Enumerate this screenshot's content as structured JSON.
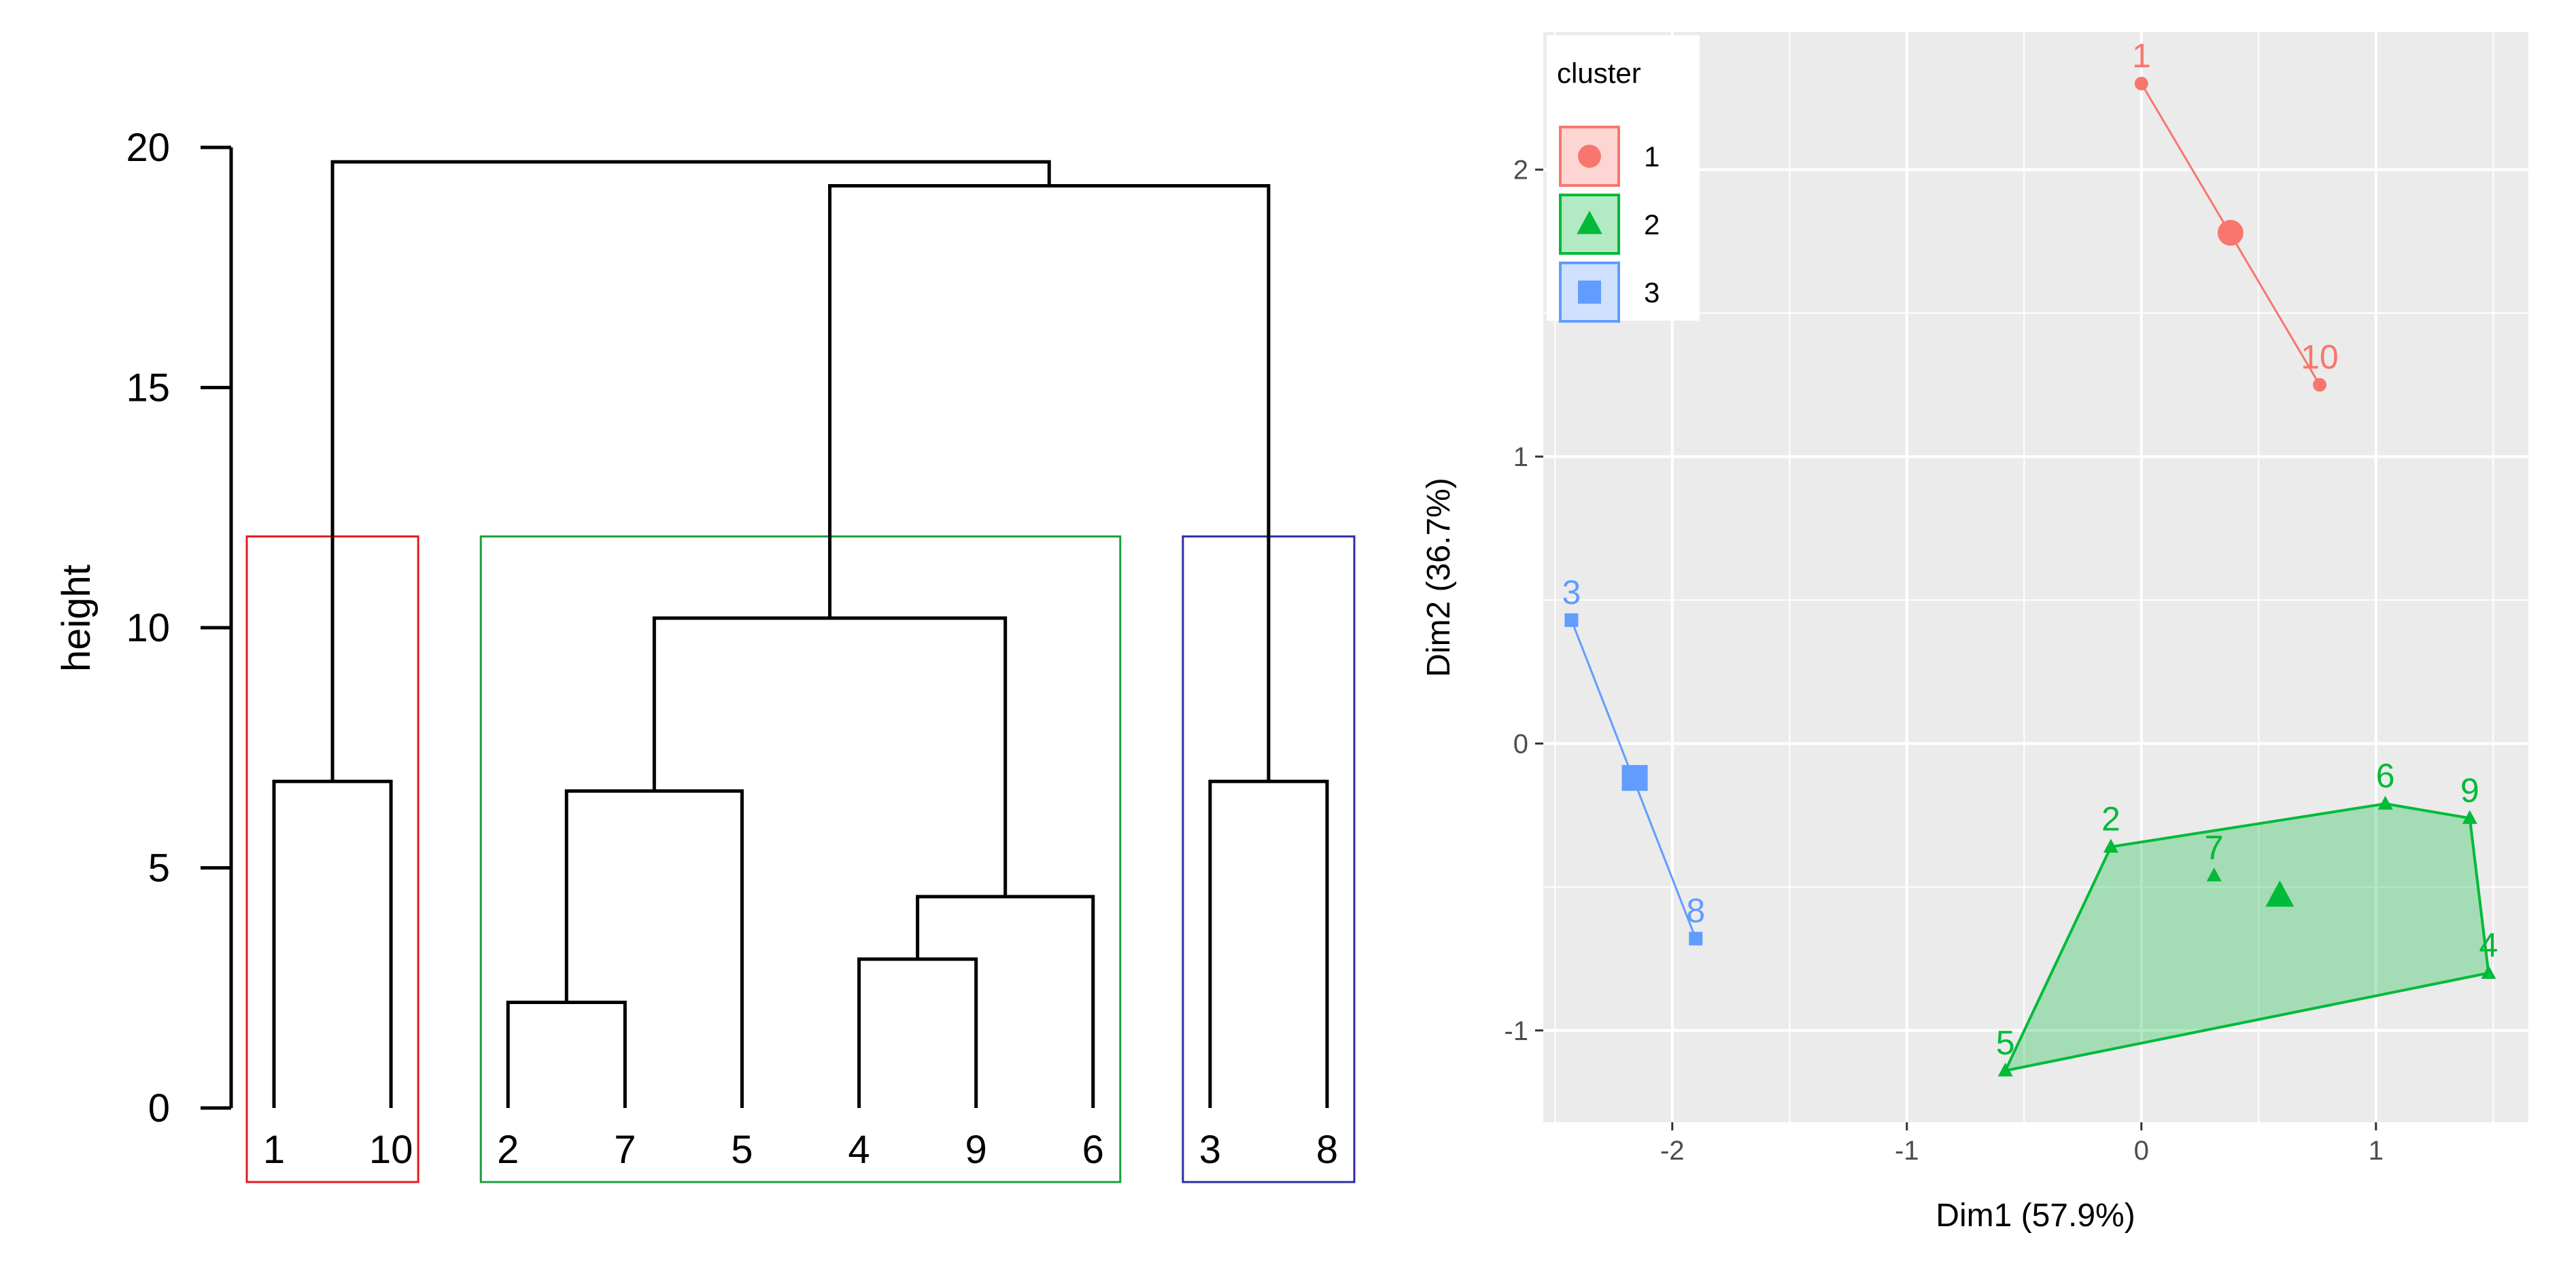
{
  "chart_data": [
    {
      "type": "dendrogram",
      "title": "",
      "ylabel": "height",
      "ylim": [
        0,
        20
      ],
      "y_ticks": [
        "0",
        "5",
        "10",
        "15",
        "20"
      ],
      "leaves": [
        {
          "label": "1"
        },
        {
          "label": "10"
        },
        {
          "label": "2"
        },
        {
          "label": "7"
        },
        {
          "label": "5"
        },
        {
          "label": "4"
        },
        {
          "label": "9"
        },
        {
          "label": "6"
        },
        {
          "label": "3"
        },
        {
          "label": "8"
        }
      ],
      "merges": [
        {
          "left": "L0",
          "right": "L1",
          "height": 6.8
        },
        {
          "left": "L2",
          "right": "L3",
          "height": 2.2
        },
        {
          "left": "M1",
          "right": "L4",
          "height": 6.6
        },
        {
          "left": "L5",
          "right": "L6",
          "height": 3.1
        },
        {
          "left": "M3",
          "right": "L7",
          "height": 4.4
        },
        {
          "left": "M2",
          "right": "M4",
          "height": 10.2
        },
        {
          "left": "L8",
          "right": "L9",
          "height": 6.8
        },
        {
          "left": "M5",
          "right": "M6",
          "height": 19.2
        },
        {
          "left": "M0",
          "right": "M7",
          "height": 19.7
        }
      ],
      "cluster_boxes": [
        {
          "name": "cluster-1",
          "first_leaf": 0,
          "last_leaf": 1,
          "color": "#e41a1c"
        },
        {
          "name": "cluster-2",
          "first_leaf": 2,
          "last_leaf": 7,
          "color": "#1a9e3c"
        },
        {
          "name": "cluster-3",
          "first_leaf": 8,
          "last_leaf": 9,
          "color": "#2c2ca6"
        }
      ]
    },
    {
      "type": "scatter",
      "xlabel": "Dim1 (57.9%)",
      "ylabel": "Dim2 (36.7%)",
      "xlim": [
        -2.55,
        1.65
      ],
      "ylim": [
        -1.32,
        2.48
      ],
      "x_ticks": [
        "-2",
        "-1",
        "0",
        "1"
      ],
      "y_ticks": [
        "-1",
        "0",
        "1",
        "2"
      ],
      "legend": {
        "title": "cluster",
        "position": "top-left",
        "entries": [
          {
            "label": "1",
            "color": "#f8766d",
            "shape": "circle"
          },
          {
            "label": "2",
            "color": "#00ba38",
            "shape": "triangle"
          },
          {
            "label": "3",
            "color": "#619cff",
            "shape": "square"
          }
        ]
      },
      "series": [
        {
          "cluster": "1",
          "color": "#f8766d",
          "shape": "circle",
          "points": [
            {
              "label": "1",
              "x": 0.0,
              "y": 2.3
            },
            {
              "label": "10",
              "x": 0.76,
              "y": 1.25
            }
          ],
          "centroid": {
            "x": 0.38,
            "y": 1.78
          },
          "hull_order": [
            "1",
            "10"
          ]
        },
        {
          "cluster": "2",
          "color": "#00ba38",
          "shape": "triangle",
          "points": [
            {
              "label": "2",
              "x": -0.13,
              "y": -0.36
            },
            {
              "label": "7",
              "x": 0.31,
              "y": -0.46
            },
            {
              "label": "6",
              "x": 1.04,
              "y": -0.21
            },
            {
              "label": "9",
              "x": 1.4,
              "y": -0.26
            },
            {
              "label": "4",
              "x": 1.48,
              "y": -0.8
            },
            {
              "label": "5",
              "x": -0.58,
              "y": -1.14
            }
          ],
          "centroid": {
            "x": 0.59,
            "y": -0.53
          },
          "hull_order": [
            "2",
            "6",
            "9",
            "4",
            "5"
          ]
        },
        {
          "cluster": "3",
          "color": "#619cff",
          "shape": "square",
          "points": [
            {
              "label": "3",
              "x": -2.43,
              "y": 0.43
            },
            {
              "label": "8",
              "x": -1.9,
              "y": -0.68
            }
          ],
          "centroid": {
            "x": -2.16,
            "y": -0.12
          },
          "hull_order": [
            "3",
            "8"
          ]
        }
      ]
    }
  ]
}
